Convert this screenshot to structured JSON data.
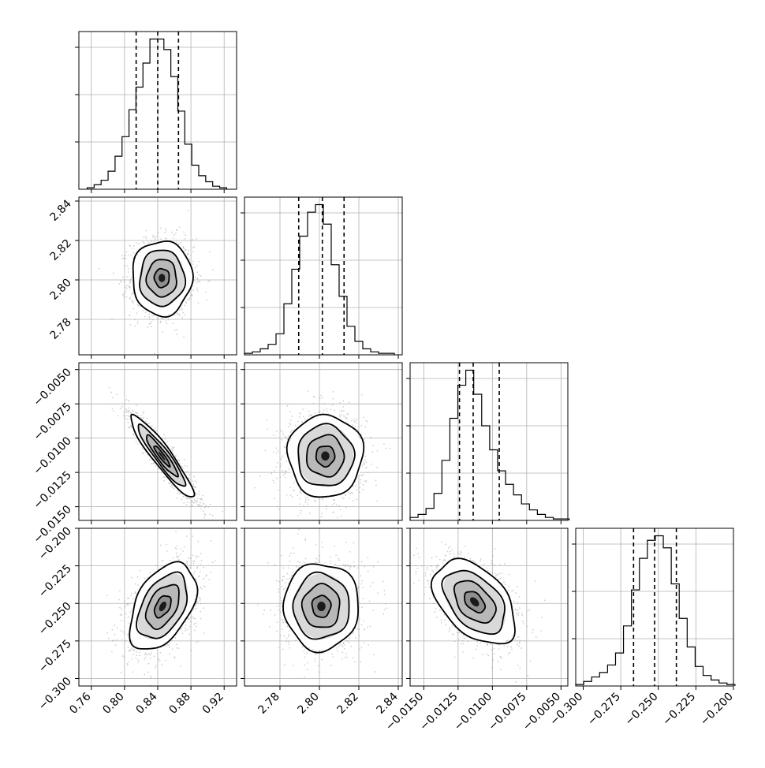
{
  "chart_data": {
    "type": "corner",
    "grid": true,
    "params": [
      {
        "range": [
          0.745,
          0.935
        ],
        "ticks": [
          0.76,
          0.8,
          0.84,
          0.88,
          0.92
        ],
        "tick_labels": [
          "0.76",
          "0.80",
          "0.84",
          "0.88",
          "0.92"
        ],
        "quantiles": [
          0.814,
          0.84,
          0.865
        ],
        "hist": {
          "edges_start": 0.755,
          "bin_width": 0.0084,
          "heights": [
            1,
            3,
            6,
            12,
            22,
            35,
            53,
            68,
            84,
            100,
            100,
            93,
            75,
            52,
            30,
            16,
            9,
            5,
            2,
            1
          ]
        }
      },
      {
        "range": [
          2.762,
          2.842
        ],
        "ticks": [
          2.78,
          2.8,
          2.82,
          2.84
        ],
        "tick_labels": [
          "2.78",
          "2.80",
          "2.82",
          "2.84"
        ],
        "quantiles": [
          2.7895,
          2.8015,
          2.8125
        ],
        "hist": {
          "edges_start": 2.762,
          "bin_width": 0.004,
          "heights": [
            1,
            2,
            4,
            7,
            14,
            34,
            57,
            79,
            95,
            100,
            87,
            60,
            39,
            19,
            9,
            4,
            2,
            1,
            1
          ]
        }
      },
      {
        "range": [
          -0.016,
          -0.0045
        ],
        "ticks": [
          -0.015,
          -0.0125,
          -0.01,
          -0.0075,
          -0.005
        ],
        "tick_labels": [
          "−0.0150",
          "−0.0125",
          "−0.0100",
          "−0.0075",
          "−0.0050"
        ],
        "quantiles": [
          -0.0124,
          -0.0114,
          -0.0095
        ],
        "hist": {
          "edges_start": -0.016,
          "bin_width": 0.00058,
          "heights": [
            2,
            4,
            8,
            18,
            40,
            68,
            90,
            100,
            84,
            63,
            47,
            33,
            24,
            17,
            11,
            7,
            4,
            2,
            1,
            1
          ]
        }
      },
      {
        "range": [
          -0.305,
          -0.2
        ],
        "ticks": [
          -0.3,
          -0.275,
          -0.25,
          -0.225,
          -0.2
        ],
        "tick_labels": [
          "−0.300",
          "−0.275",
          "−0.250",
          "−0.225",
          "−0.200"
        ],
        "quantiles": [
          -0.2665,
          -0.2525,
          -0.238
        ],
        "hist": {
          "edges_start": -0.305,
          "bin_width": 0.0053,
          "heights": [
            1,
            3,
            6,
            9,
            14,
            22,
            40,
            64,
            85,
            97,
            100,
            92,
            68,
            45,
            26,
            13,
            7,
            4,
            2,
            1
          ]
        }
      }
    ],
    "pairs": [
      {
        "row": 1,
        "col": 0,
        "mean": [
          0.845,
          2.801
        ],
        "sd": [
          0.018,
          0.0095
        ],
        "rho": 0.0
      },
      {
        "row": 2,
        "col": 0,
        "mean": [
          0.845,
          -0.0113
        ],
        "sd": [
          0.019,
          0.0015
        ],
        "rho": -0.93
      },
      {
        "row": 2,
        "col": 1,
        "mean": [
          2.803,
          -0.0113
        ],
        "sd": [
          0.0095,
          0.0015
        ],
        "rho": 0.0
      },
      {
        "row": 3,
        "col": 0,
        "mean": [
          0.846,
          -0.252
        ],
        "sd": [
          0.02,
          0.0145
        ],
        "rho": 0.45
      },
      {
        "row": 3,
        "col": 1,
        "mean": [
          2.801,
          -0.252
        ],
        "sd": [
          0.0095,
          0.0145
        ],
        "rho": 0.0
      },
      {
        "row": 3,
        "col": 2,
        "mean": [
          -0.0113,
          -0.249
        ],
        "sd": [
          0.0015,
          0.014
        ],
        "rho": -0.45
      }
    ],
    "contour_levels": "0.5, 1.0, 1.5, 2.0 sigma",
    "colors": {
      "line": "#000000",
      "scatter": "#000000",
      "grid": "#b0b0b0"
    }
  }
}
